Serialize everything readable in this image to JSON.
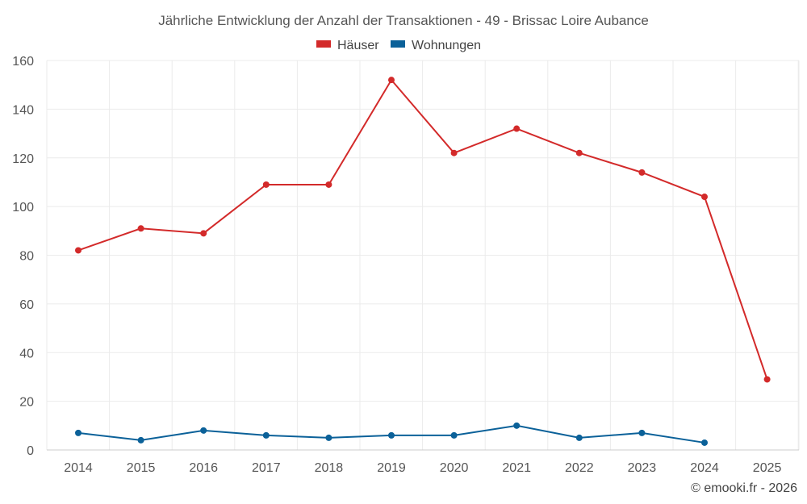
{
  "chart_data": {
    "type": "line",
    "title": "Jährliche Entwicklung der Anzahl der Transaktionen - 49 - Brissac Loire Aubance",
    "categories": [
      "2014",
      "2015",
      "2016",
      "2017",
      "2018",
      "2019",
      "2020",
      "2021",
      "2022",
      "2023",
      "2024",
      "2025"
    ],
    "yticks": [
      "0",
      "20",
      "40",
      "60",
      "80",
      "100",
      "120",
      "140",
      "160"
    ],
    "ylim": [
      0,
      160
    ],
    "grid": true,
    "legend_position": "top-center",
    "series": [
      {
        "name": "Häuser",
        "color": "#d32a2a",
        "values": [
          82,
          91,
          89,
          109,
          109,
          152,
          122,
          132,
          122,
          114,
          104,
          29
        ]
      },
      {
        "name": "Wohnungen",
        "color": "#0b6199",
        "values": [
          7,
          4,
          8,
          6,
          5,
          6,
          6,
          10,
          5,
          7,
          3,
          null
        ]
      }
    ],
    "credit": "© emooki.fr - 2026"
  }
}
